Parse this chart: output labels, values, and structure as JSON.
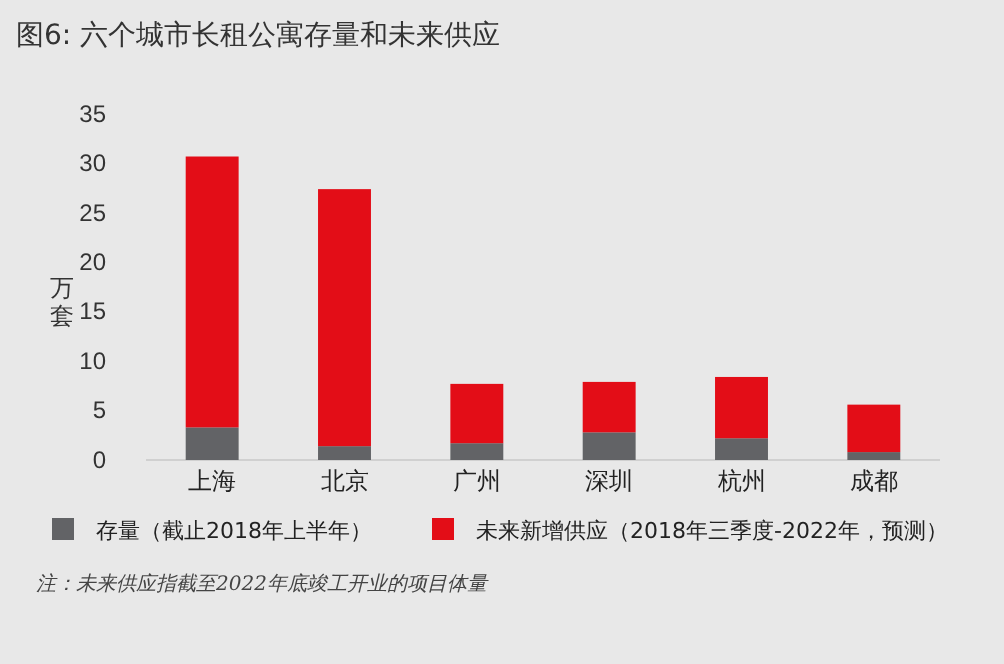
{
  "chart_data": {
    "type": "bar",
    "title": "图6: 六个城市长租公寓存量和未来供应",
    "ylabel": "万套",
    "categories": [
      "上海",
      "北京",
      "广州",
      "深圳",
      "杭州",
      "成都"
    ],
    "stacked": true,
    "series": [
      {
        "name": "存量（截止2018年上半年）",
        "color": "#626366",
        "values": [
          3.3,
          1.4,
          1.7,
          2.8,
          2.2,
          0.8
        ]
      },
      {
        "name": "未来新增供应（2018年三季度-2022年，预测）",
        "color": "#e30d17",
        "values": [
          27.4,
          26,
          6,
          5.1,
          6.2,
          4.8
        ]
      }
    ],
    "ylim": [
      0,
      35
    ],
    "yticks": [
      0,
      5,
      10,
      15,
      20,
      25,
      30,
      35
    ],
    "grid": false,
    "legend": "bottom",
    "annotations": [
      "注：未来供应指截至2022年底竣工开业的项目体量"
    ]
  }
}
